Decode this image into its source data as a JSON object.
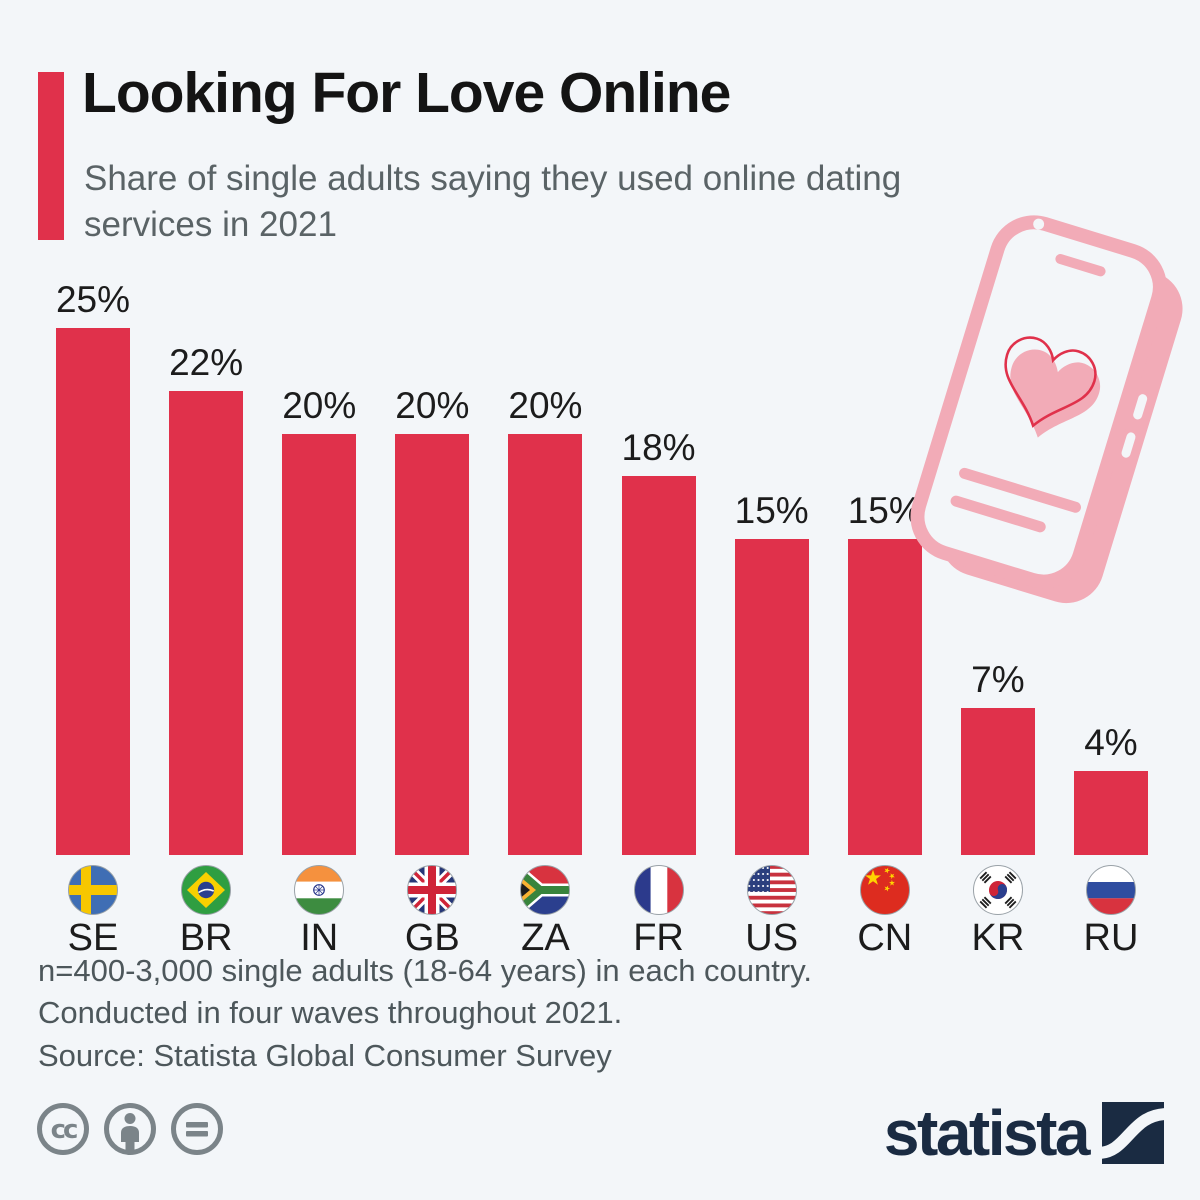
{
  "page": {
    "background": "#f3f6f9"
  },
  "header": {
    "title": "Looking For Love Online",
    "subtitle": "Share of single adults saying they used online dating services in 2021",
    "accent_color": "#e0314b"
  },
  "chart_data": {
    "type": "bar",
    "unit": "%",
    "title": "Looking For Love Online",
    "subtitle": "Share of single adults saying they used online dating services in 2021",
    "categories": [
      "SE",
      "BR",
      "IN",
      "GB",
      "ZA",
      "FR",
      "US",
      "CN",
      "KR",
      "RU"
    ],
    "values": [
      25,
      22,
      20,
      20,
      20,
      18,
      15,
      15,
      7,
      4
    ],
    "ylim": [
      0,
      26
    ],
    "grid": false,
    "legend": false,
    "bar_color": "#e0314b",
    "countries": [
      {
        "code": "SE",
        "label": "25%",
        "value": 25,
        "flag": "sweden-flag-icon"
      },
      {
        "code": "BR",
        "label": "22%",
        "value": 22,
        "flag": "brazil-flag-icon"
      },
      {
        "code": "IN",
        "label": "20%",
        "value": 20,
        "flag": "india-flag-icon"
      },
      {
        "code": "GB",
        "label": "20%",
        "value": 20,
        "flag": "uk-flag-icon"
      },
      {
        "code": "ZA",
        "label": "20%",
        "value": 20,
        "flag": "south-africa-flag-icon"
      },
      {
        "code": "FR",
        "label": "18%",
        "value": 18,
        "flag": "france-flag-icon"
      },
      {
        "code": "US",
        "label": "15%",
        "value": 15,
        "flag": "usa-flag-icon"
      },
      {
        "code": "CN",
        "label": "15%",
        "value": 15,
        "flag": "china-flag-icon"
      },
      {
        "code": "KR",
        "label": "7%",
        "value": 7,
        "flag": "south-korea-flag-icon"
      },
      {
        "code": "RU",
        "label": "4%",
        "value": 4,
        "flag": "russia-flag-icon"
      }
    ]
  },
  "illustration": {
    "name": "smartphone-heart-illustration",
    "colors": {
      "pink": "#f2abb7",
      "heart_outline_red": "#e0314b"
    }
  },
  "footer": {
    "note_line1": "n=400-3,000 single adults (18-64 years) in each country.",
    "note_line2": "Conducted in four waves throughout 2021.",
    "source": "Source: Statista Global Consumer Survey",
    "license_icons": [
      "creative-commons-icon",
      "attribution-icon",
      "no-derivatives-icon"
    ]
  },
  "branding": {
    "wordmark": "statista",
    "logo": "statista-logo-icon",
    "color": "#1a2b42"
  }
}
